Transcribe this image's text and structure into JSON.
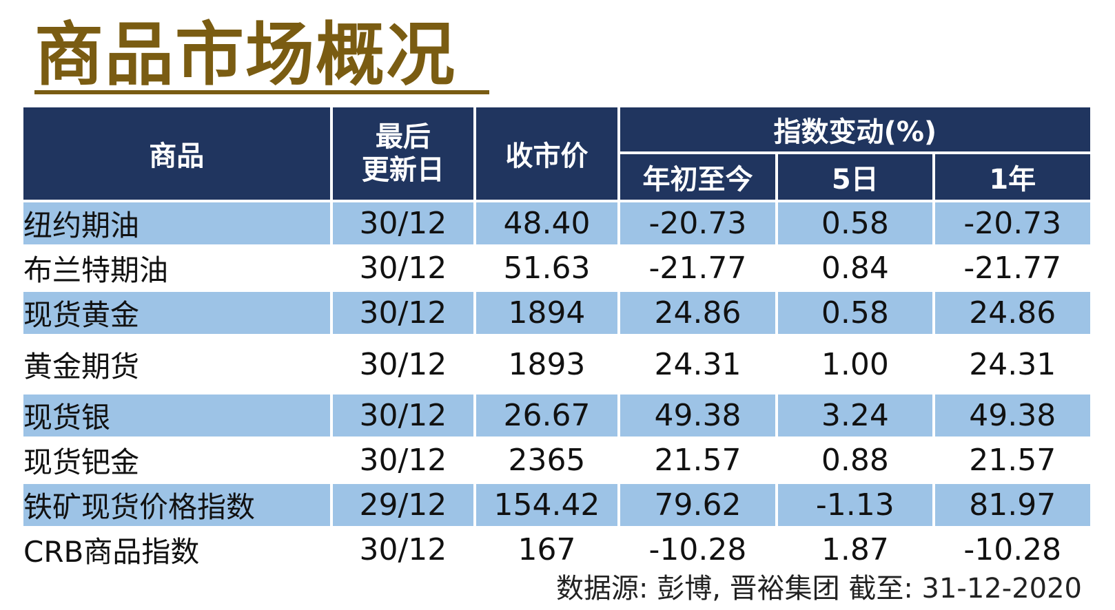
{
  "title": "商品市场概况",
  "headers": {
    "commodity": "商品",
    "last_update_line1": "最后",
    "last_update_line2": "更新日",
    "close": "收市价",
    "change_group": "指数变动(%)",
    "ytd": "年初至今",
    "d5": "5日",
    "y1": "1年"
  },
  "rows": [
    {
      "name": "纽约期油",
      "date": "30/12",
      "close": "48.40",
      "ytd": "-20.73",
      "d5": "0.58",
      "y1": "-20.73"
    },
    {
      "name": "布兰特期油",
      "date": "30/12",
      "close": "51.63",
      "ytd": "-21.77",
      "d5": "0.84",
      "y1": "-21.77"
    },
    {
      "name": "现货黄金",
      "date": "30/12",
      "close": "1894",
      "ytd": "24.86",
      "d5": "0.58",
      "y1": "24.86"
    },
    {
      "name": "黄金期货",
      "date": "30/12",
      "close": "1893",
      "ytd": "24.31",
      "d5": "1.00",
      "y1": "24.31"
    },
    {
      "name": "现货银",
      "date": "30/12",
      "close": "26.67",
      "ytd": "49.38",
      "d5": "3.24",
      "y1": "49.38"
    },
    {
      "name": "现货钯金",
      "date": "30/12",
      "close": "2365",
      "ytd": "21.57",
      "d5": "0.88",
      "y1": "21.57"
    },
    {
      "name": "铁矿现货价格指数",
      "date": "29/12",
      "close": "154.42",
      "ytd": "79.62",
      "d5": "-1.13",
      "y1": "81.97"
    },
    {
      "name": "CRB商品指数",
      "date": "30/12",
      "close": "167",
      "ytd": "-10.28",
      "d5": "1.87",
      "y1": "-10.28"
    }
  ],
  "source": "数据源: 彭博, 晋裕集团 截至: 31-12-2020",
  "colors": {
    "header": "#20355f",
    "shade": "#9dc3e6",
    "title": "#7a5c12"
  }
}
